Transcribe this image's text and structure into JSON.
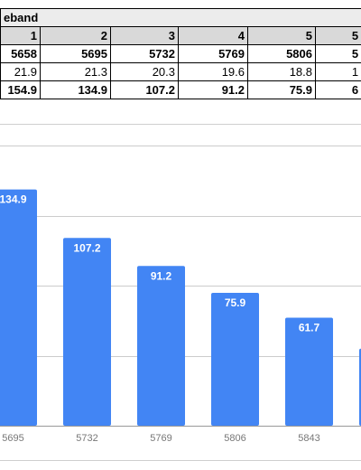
{
  "sheet": {
    "title": "eband",
    "columns": [
      "1",
      "2",
      "3",
      "4",
      "5",
      "5"
    ],
    "rows": [
      [
        "5658",
        "5695",
        "5732",
        "5769",
        "5806",
        "5"
      ],
      [
        "21.9",
        "21.3",
        "20.3",
        "19.6",
        "18.8",
        "1"
      ],
      [
        "154.9",
        "134.9",
        "107.2",
        "91.2",
        "75.9",
        "6"
      ]
    ]
  },
  "chart_data": {
    "type": "bar",
    "categories": [
      "5695",
      "5732",
      "5769",
      "5806",
      "5843"
    ],
    "values": [
      134.9,
      107.2,
      91.2,
      75.9,
      61.7
    ],
    "value_labels": [
      "134.9",
      "107.2",
      "91.2",
      "75.9",
      "61.7"
    ],
    "partial_next_bar_value": 44,
    "ylim": [
      0,
      160
    ],
    "grid": true,
    "bar_color": "#4285f4",
    "label_color": "#ffffff",
    "gridline_color": "#cccccc",
    "tick_color": "#777777"
  }
}
